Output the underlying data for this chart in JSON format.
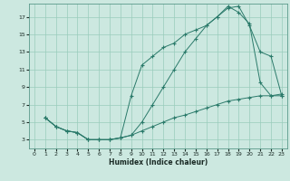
{
  "xlabel": "Humidex (Indice chaleur)",
  "bg_color": "#cce8e0",
  "grid_color": "#99ccbb",
  "line_color": "#2a7a6a",
  "xlim": [
    -0.5,
    23.5
  ],
  "ylim": [
    2.0,
    18.5
  ],
  "xticks": [
    0,
    1,
    2,
    3,
    4,
    5,
    6,
    7,
    8,
    9,
    10,
    11,
    12,
    13,
    14,
    15,
    16,
    17,
    18,
    19,
    20,
    21,
    22,
    23
  ],
  "yticks": [
    3,
    5,
    7,
    9,
    11,
    13,
    15,
    17
  ],
  "line1_x": [
    1,
    2,
    3,
    4,
    5,
    6,
    7,
    8,
    9,
    10,
    11,
    12,
    13,
    14,
    15,
    16,
    17,
    18,
    19,
    20,
    21,
    22,
    23
  ],
  "line1_y": [
    5.5,
    4.5,
    4.0,
    3.8,
    3.0,
    3.0,
    3.0,
    3.2,
    3.5,
    4.0,
    4.5,
    5.0,
    5.5,
    5.8,
    6.2,
    6.6,
    7.0,
    7.4,
    7.6,
    7.8,
    8.0,
    8.0,
    8.2
  ],
  "line2_x": [
    1,
    2,
    3,
    4,
    5,
    6,
    7,
    8,
    9,
    10,
    11,
    12,
    13,
    14,
    15,
    16,
    17,
    18,
    19,
    20,
    21,
    22,
    23
  ],
  "line2_y": [
    5.5,
    4.5,
    4.0,
    3.8,
    3.0,
    3.0,
    3.0,
    3.2,
    8.0,
    11.5,
    12.5,
    13.5,
    14.0,
    15.0,
    15.5,
    16.0,
    17.0,
    18.0,
    18.2,
    16.0,
    13.0,
    12.5,
    8.0
  ],
  "line3_x": [
    1,
    2,
    3,
    4,
    5,
    6,
    7,
    8,
    9,
    10,
    11,
    12,
    13,
    14,
    15,
    16,
    17,
    18,
    19,
    20,
    21,
    22,
    23
  ],
  "line3_y": [
    5.5,
    4.5,
    4.0,
    3.8,
    3.0,
    3.0,
    3.0,
    3.2,
    3.5,
    5.0,
    7.0,
    9.0,
    11.0,
    13.0,
    14.5,
    16.0,
    17.0,
    18.2,
    17.5,
    16.2,
    9.5,
    8.0,
    8.0
  ]
}
